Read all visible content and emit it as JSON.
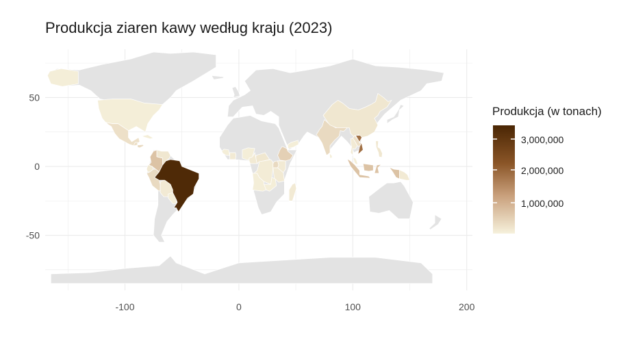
{
  "title": "Produkcja ziaren kawy według kraju (2023)",
  "colors": {
    "land_no_data": "#e3e3e3",
    "grid": "#ebebeb",
    "scale_low": "#f6f1dc",
    "scale_mid": "#b07b4c",
    "scale_high": "#4a2604"
  },
  "axes": {
    "x_ticks": [
      "-100",
      "0",
      "100",
      "200"
    ],
    "y_ticks": [
      "50",
      "0",
      "-50"
    ]
  },
  "legend": {
    "title": "Produkcja (w tonach)",
    "labels": [
      "3,000,000",
      "2,000,000",
      "1,000,000"
    ]
  },
  "chart_data": {
    "type": "choropleth",
    "x_range": [
      -170,
      205
    ],
    "y_range": [
      -90,
      85
    ],
    "legend_placement": "right",
    "value_range": [
      0,
      3500000
    ],
    "regions": [
      {
        "name": "Brazil",
        "value": 3400000
      },
      {
        "name": "Vietnam",
        "value": 1900000
      },
      {
        "name": "Colombia",
        "value": 700000
      },
      {
        "name": "Indonesia",
        "value": 700000
      },
      {
        "name": "Ethiopia",
        "value": 500000
      },
      {
        "name": "Peru",
        "value": 350000
      },
      {
        "name": "India",
        "value": 350000
      },
      {
        "name": "Honduras",
        "value": 350000
      },
      {
        "name": "Mexico",
        "value": 250000
      },
      {
        "name": "Uganda",
        "value": 350000
      },
      {
        "name": "Guatemala",
        "value": 250000
      },
      {
        "name": "Laos",
        "value": 250000
      },
      {
        "name": "Philippines",
        "value": 150000
      },
      {
        "name": "China",
        "value": 150000
      },
      {
        "name": "Central African Republic",
        "value": 150000
      },
      {
        "name": "United States",
        "value": 50000
      },
      {
        "name": "Alaska",
        "value": 50000
      },
      {
        "name": "Venezuela",
        "value": 150000
      },
      {
        "name": "Ecuador",
        "value": 100000
      },
      {
        "name": "Bolivia",
        "value": 100000
      },
      {
        "name": "Tanzania",
        "value": 100000
      },
      {
        "name": "Kenya",
        "value": 100000
      },
      {
        "name": "Madagascar",
        "value": 100000
      },
      {
        "name": "Papua New Guinea",
        "value": 100000
      },
      {
        "name": "Ivory Coast",
        "value": 100000
      },
      {
        "name": "Cameroon",
        "value": 100000
      },
      {
        "name": "DR Congo",
        "value": 80000
      },
      {
        "name": "Guinea",
        "value": 50000
      },
      {
        "name": "Angola",
        "value": 50000
      },
      {
        "name": "Zambia",
        "value": 50000
      },
      {
        "name": "Nigeria",
        "value": 50000
      },
      {
        "name": "Thailand",
        "value": 100000
      },
      {
        "name": "Malaysia",
        "value": 50000
      },
      {
        "name": "Sri Lanka",
        "value": 50000
      },
      {
        "name": "Yemen",
        "value": 50000
      },
      {
        "name": "Cuba",
        "value": 50000
      },
      {
        "name": "Paraguay",
        "value": 50000
      }
    ]
  }
}
